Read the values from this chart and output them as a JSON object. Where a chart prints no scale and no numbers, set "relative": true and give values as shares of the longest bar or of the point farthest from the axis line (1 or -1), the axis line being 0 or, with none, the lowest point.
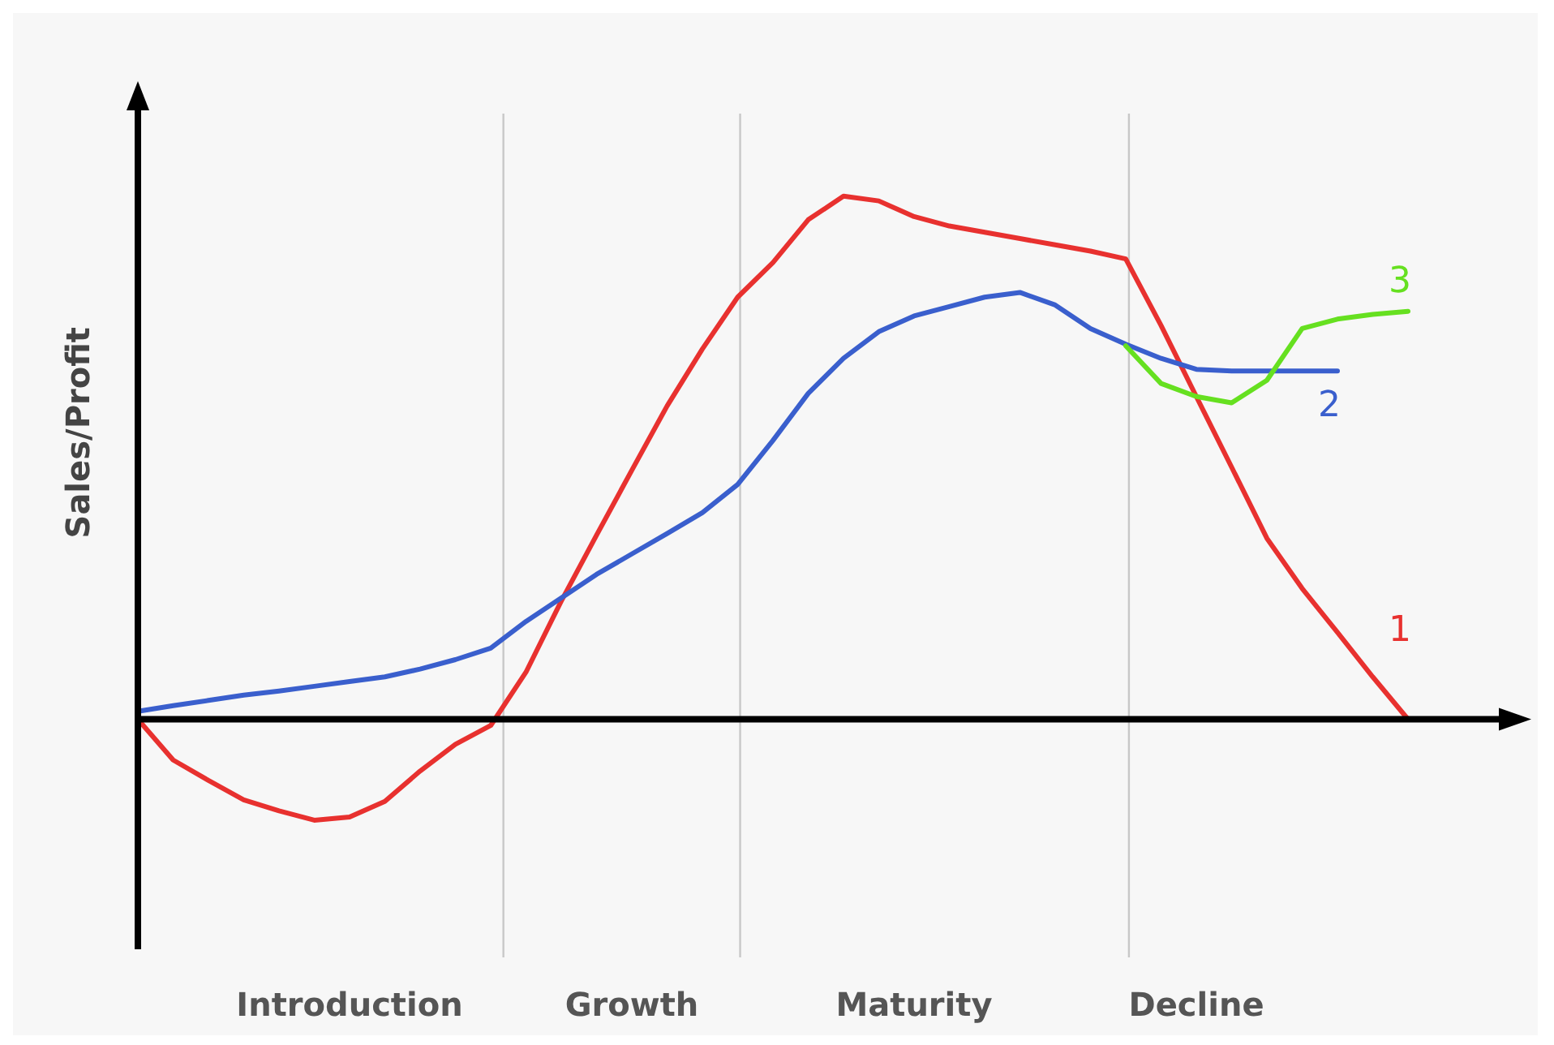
{
  "chart_data": {
    "type": "line",
    "ylabel": "Sales/Profit",
    "relative": true,
    "marker": "none",
    "line_style": "solid",
    "categories": [
      null,
      null,
      null,
      null,
      null,
      null,
      "Introduction",
      null,
      null,
      null,
      null,
      null,
      null,
      null,
      "Growth",
      null,
      null,
      null,
      null,
      null,
      null,
      null,
      "Maturity",
      null,
      null,
      null,
      null,
      null,
      null,
      null,
      "Decline",
      null,
      null,
      null,
      null,
      null,
      null
    ],
    "series": [
      {
        "name": "1",
        "color": "#e8312f",
        "values": [
          0,
          -0.078,
          -0.117,
          -0.154,
          -0.175,
          -0.193,
          -0.187,
          -0.157,
          -0.099,
          -0.048,
          -0.012,
          0.09,
          0.226,
          0.352,
          0.476,
          0.599,
          0.708,
          0.807,
          0.873,
          0.955,
          1,
          0.991,
          0.961,
          0.943,
          0.931,
          0.919,
          0.907,
          0.895,
          0.88,
          0.753,
          0.617,
          0.482,
          0.346,
          0.25,
          0.166,
          0.081,
          0
        ]
      },
      {
        "name": "2",
        "color": "#3a5fcd",
        "values": [
          0.015,
          0.026,
          0.036,
          0.046,
          0.054,
          0.063,
          0.072,
          0.081,
          0.096,
          0.114,
          0.136,
          0.187,
          0.232,
          0.277,
          0.316,
          0.355,
          0.395,
          0.449,
          0.533,
          0.623,
          0.69,
          0.741,
          0.771,
          0.789,
          0.807,
          0.816,
          0.792,
          0.747,
          0.717,
          0.69,
          0.669,
          0.666,
          0.666,
          0.666,
          0.666,
          null,
          null
        ]
      },
      {
        "name": "3",
        "color": "#66e020",
        "values": [
          null,
          null,
          null,
          null,
          null,
          null,
          null,
          null,
          null,
          null,
          null,
          null,
          null,
          null,
          null,
          null,
          null,
          null,
          null,
          null,
          null,
          null,
          null,
          null,
          null,
          null,
          null,
          null,
          0.714,
          0.642,
          0.617,
          0.605,
          0.648,
          0.747,
          0.765,
          0.774,
          0.78
        ]
      }
    ]
  }
}
